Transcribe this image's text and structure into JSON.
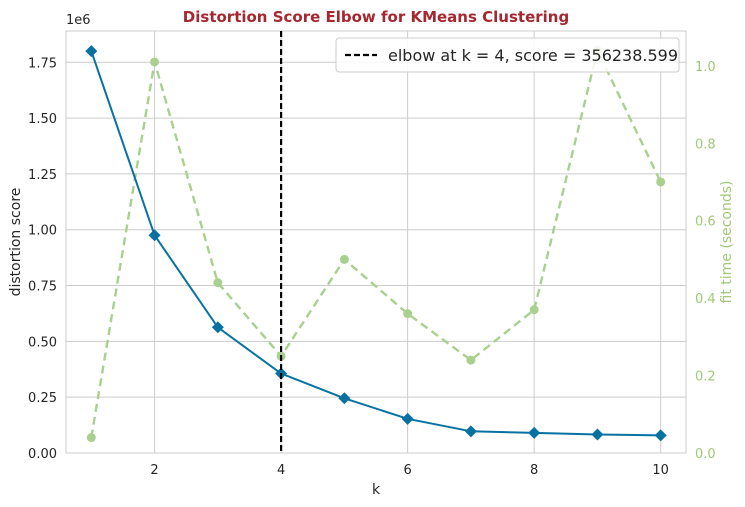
{
  "chart_data": {
    "type": "line",
    "title": "Distortion Score Elbow for KMeans Clustering",
    "xlabel": "k",
    "ylabel": "distortion score",
    "y2label": "fit time (seconds)",
    "offset_text": "1e6",
    "x": [
      1,
      2,
      3,
      4,
      5,
      6,
      7,
      8,
      9,
      10
    ],
    "xlim": [
      0.6,
      10.4
    ],
    "ylim": [
      0,
      1890000
    ],
    "y2lim": [
      0,
      1.09
    ],
    "x_ticks": [
      2,
      4,
      6,
      8,
      10
    ],
    "x_tick_labels": [
      "2",
      "4",
      "6",
      "8",
      "10"
    ],
    "y_ticks": [
      0,
      250000,
      500000,
      750000,
      1000000,
      1250000,
      1500000,
      1750000
    ],
    "y_tick_labels": [
      "0.00",
      "0.25",
      "0.50",
      "0.75",
      "1.00",
      "1.25",
      "1.50",
      "1.75"
    ],
    "y2_ticks": [
      0,
      0.2,
      0.4,
      0.6,
      0.8,
      1.0
    ],
    "y2_tick_labels": [
      "0.0",
      "0.2",
      "0.4",
      "0.6",
      "0.8",
      "1.0"
    ],
    "grid": true,
    "series": [
      {
        "axis": "left",
        "style": "solid",
        "marker": "diamond",
        "color": "#0772a1",
        "values": [
          1800000,
          975000,
          563000,
          356238.599,
          245000,
          153000,
          97000,
          90000,
          83000,
          79000
        ]
      },
      {
        "axis": "right",
        "style": "dashed",
        "marker": "circle",
        "color": "#a9d08e",
        "values": [
          0.04,
          1.01,
          0.44,
          0.25,
          0.5,
          0.36,
          0.24,
          0.37,
          1.04,
          0.7
        ]
      }
    ],
    "elbow": {
      "k": 4,
      "color": "#000000",
      "legend_text": "elbow at k = 4, score = 356238.599",
      "legend_placement": "top-right"
    }
  }
}
